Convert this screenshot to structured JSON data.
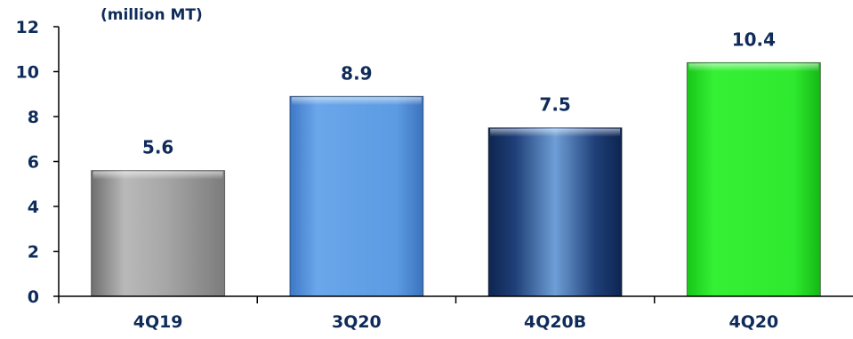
{
  "chart_data": {
    "type": "bar",
    "unit_label": "(million MT)",
    "categories": [
      "4Q19",
      "3Q20",
      "4Q20B",
      "4Q20"
    ],
    "values": [
      5.6,
      8.9,
      7.5,
      10.4
    ],
    "value_labels": [
      "5.6",
      "8.9",
      "7.5",
      "10.4"
    ],
    "ylim": [
      0,
      12
    ],
    "yticks": [
      "0",
      "2",
      "4",
      "6",
      "8",
      "10",
      "12"
    ],
    "grid": false,
    "bar_styles": [
      "gray",
      "light-blue",
      "dark-blue",
      "green"
    ],
    "colors": {
      "text": "#0F2B5A",
      "axis": "#000000",
      "gray": "#A9A9A9",
      "light_blue": "#5B9BE0",
      "dark_blue": "#1C3F78",
      "green": "#2DEB2D"
    }
  }
}
